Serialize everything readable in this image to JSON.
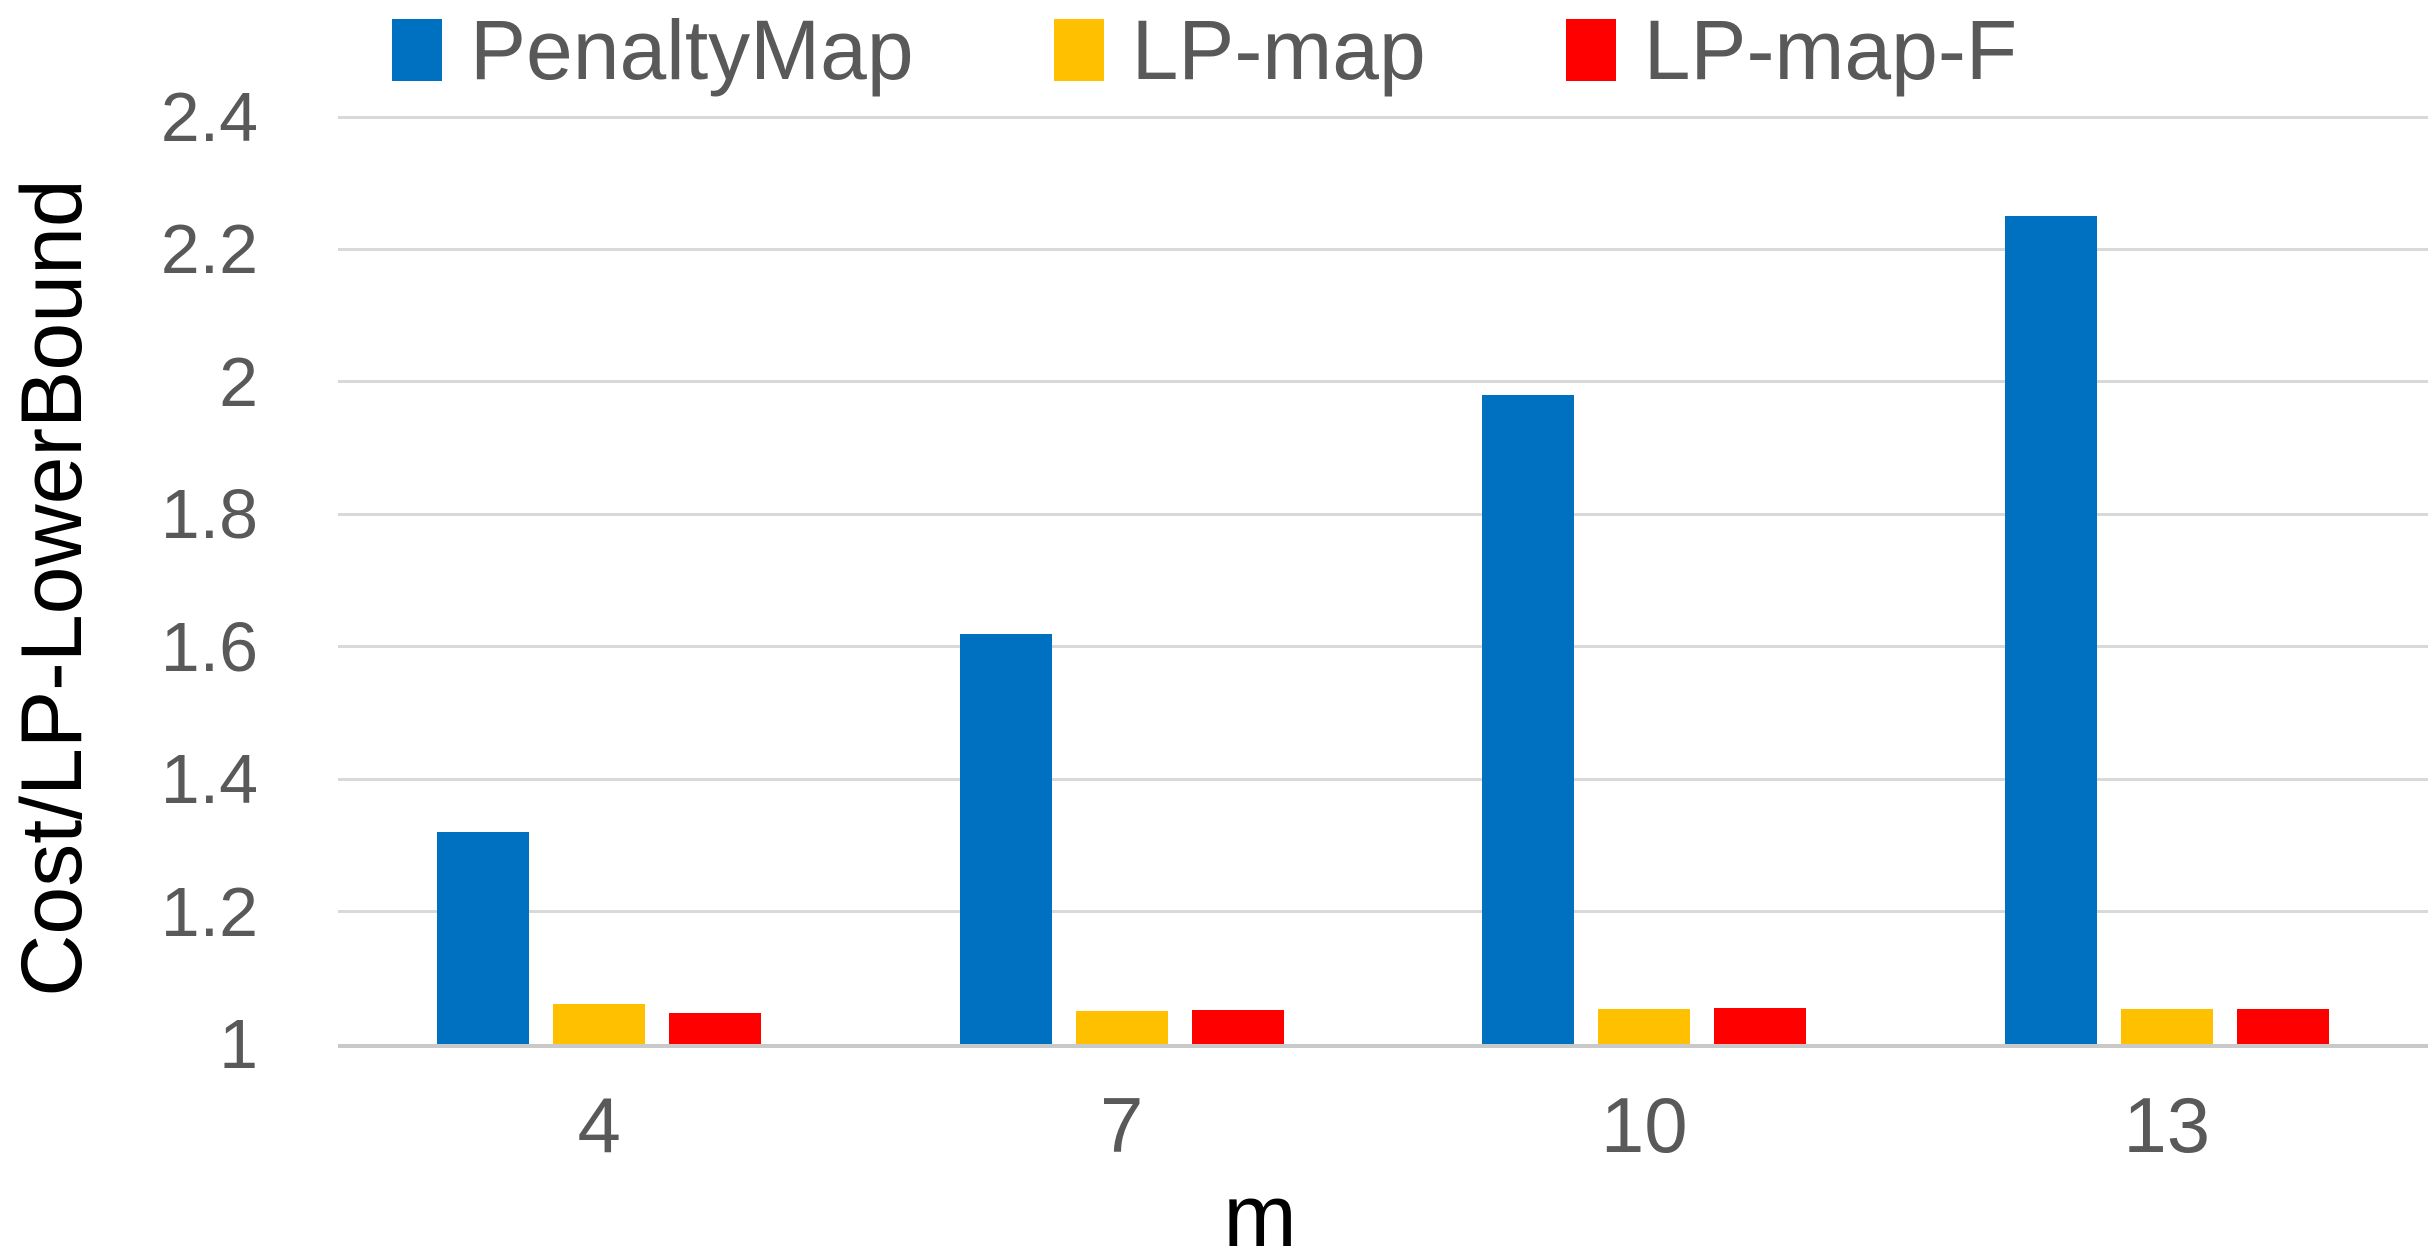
{
  "chart_data": {
    "type": "bar",
    "title": "",
    "xlabel": "m",
    "ylabel": "Cost/LP-LowerBound",
    "categories": [
      "4",
      "7",
      "10",
      "13"
    ],
    "series": [
      {
        "name": "PenaltyMap",
        "color": "#0070C0",
        "values": [
          1.32,
          1.62,
          1.98,
          2.25
        ]
      },
      {
        "name": "LP-map",
        "color": "#FFC000",
        "values": [
          1.06,
          1.05,
          1.053,
          1.053
        ]
      },
      {
        "name": "LP-map-F",
        "color": "#FF0000",
        "values": [
          1.047,
          1.051,
          1.054,
          1.053
        ]
      }
    ],
    "ylim": [
      1,
      2.4
    ],
    "yticks": [
      "1",
      "1.2",
      "1.4",
      "1.6",
      "1.8",
      "2",
      "2.2",
      "2.4"
    ],
    "ytick_values": [
      1,
      1.2,
      1.4,
      1.6,
      1.8,
      2,
      2.2,
      2.4
    ],
    "grid": "horizontal-only",
    "legend_position": "top"
  },
  "colors": {
    "gridline": "#D9D9D9",
    "axis_line": "#C9C9C9",
    "tick_text": "#595959",
    "legend_text": "#595959",
    "axis_title_text": "#000000",
    "background": "#FFFFFF"
  }
}
